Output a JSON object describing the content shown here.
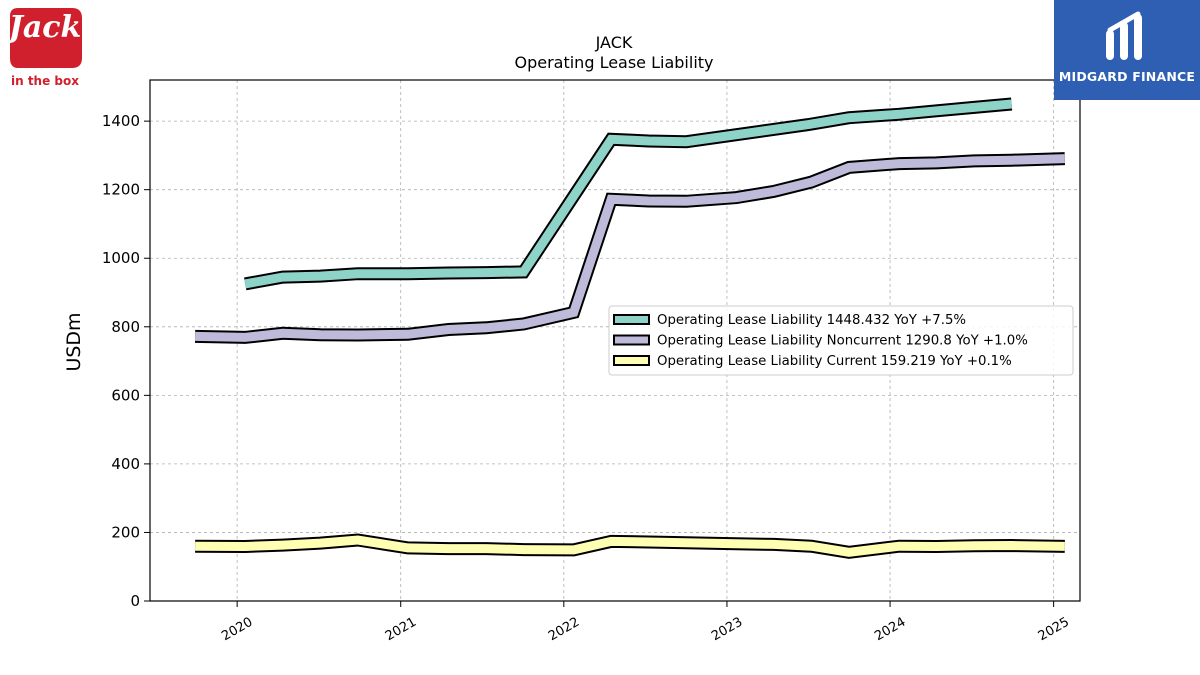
{
  "logos": {
    "left_brand_text": "Jack",
    "left_brand_sub": "in the box",
    "right_brand_text": "MIDGARD FINANCE",
    "left_color": "#d0202e",
    "right_color": "#2f5fb3"
  },
  "chart_data": {
    "type": "line",
    "title": "JACK",
    "subtitle": "Operating Lease Liability",
    "xlabel": "",
    "ylabel": "USDm",
    "ylim": [
      0,
      1520
    ],
    "xlim": [
      "2019-06-20",
      "2025-03-01"
    ],
    "yticks": [
      0,
      200,
      400,
      600,
      800,
      1000,
      1200,
      1400
    ],
    "xticks": [
      "2020",
      "2021",
      "2022",
      "2023",
      "2024",
      "2025"
    ],
    "grid": true,
    "legend_position": "center-right",
    "series": [
      {
        "name": "Operating Lease Liability",
        "legend_label": "Operating Lease Liability  1448.432 YoY +7.5%",
        "color": "#8dd3c7",
        "points": [
          [
            "2020-01-19",
            925
          ],
          [
            "2020-04-12",
            945
          ],
          [
            "2020-07-05",
            948
          ],
          [
            "2020-09-27",
            955
          ],
          [
            "2021-01-17",
            955
          ],
          [
            "2021-04-18",
            957
          ],
          [
            "2021-07-11",
            958
          ],
          [
            "2021-10-03",
            960
          ],
          [
            "2022-04-17",
            1347
          ],
          [
            "2022-07-10",
            1342
          ],
          [
            "2022-10-02",
            1340
          ],
          [
            "2023-07-02",
            1390
          ],
          [
            "2023-10-01",
            1410
          ],
          [
            "2024-01-21",
            1420
          ],
          [
            "2024-04-14",
            1430
          ],
          [
            "2024-07-07",
            1440
          ],
          [
            "2024-09-29",
            1450
          ]
        ]
      },
      {
        "name": "Operating Lease Liability Noncurrent",
        "legend_label": "Operating Lease Liability Noncurrent  1290.8 YoY +1.0%",
        "color": "#bebada",
        "points": [
          [
            "2019-09-29",
            772
          ],
          [
            "2020-01-19",
            769
          ],
          [
            "2020-04-12",
            781
          ],
          [
            "2020-07-05",
            777
          ],
          [
            "2020-09-27",
            776
          ],
          [
            "2021-01-17",
            778
          ],
          [
            "2021-04-18",
            792
          ],
          [
            "2021-07-11",
            797
          ],
          [
            "2021-10-03",
            808
          ],
          [
            "2022-01-23",
            842
          ],
          [
            "2022-04-17",
            1172
          ],
          [
            "2022-07-10",
            1167
          ],
          [
            "2022-10-02",
            1166
          ],
          [
            "2023-01-22",
            1177
          ],
          [
            "2023-04-16",
            1195
          ],
          [
            "2023-07-09",
            1222
          ],
          [
            "2023-10-01",
            1265
          ],
          [
            "2024-01-21",
            1276
          ],
          [
            "2024-04-14",
            1278
          ],
          [
            "2024-07-07",
            1284
          ],
          [
            "2024-09-29",
            1286
          ],
          [
            "2025-01-26",
            1290.8
          ]
        ]
      },
      {
        "name": "Operating Lease Liability Current",
        "legend_label": "Operating Lease Liability Current  159.219 YoY +0.1%",
        "color": "#ffffb3",
        "points": [
          [
            "2019-09-29",
            160
          ],
          [
            "2020-01-19",
            159
          ],
          [
            "2020-04-12",
            163
          ],
          [
            "2020-07-05",
            169
          ],
          [
            "2020-09-27",
            178
          ],
          [
            "2021-01-17",
            155
          ],
          [
            "2021-04-18",
            153
          ],
          [
            "2021-07-11",
            153
          ],
          [
            "2021-10-03",
            150
          ],
          [
            "2022-01-23",
            149
          ],
          [
            "2022-04-17",
            174
          ],
          [
            "2022-07-10",
            172
          ],
          [
            "2022-10-02",
            170
          ],
          [
            "2023-01-22",
            167
          ],
          [
            "2023-04-16",
            165
          ],
          [
            "2023-07-09",
            160
          ],
          [
            "2023-10-01",
            142
          ],
          [
            "2024-01-21",
            160
          ],
          [
            "2024-04-14",
            159
          ],
          [
            "2024-07-07",
            161
          ],
          [
            "2024-09-29",
            162
          ],
          [
            "2025-01-26",
            159.2
          ]
        ]
      }
    ]
  }
}
